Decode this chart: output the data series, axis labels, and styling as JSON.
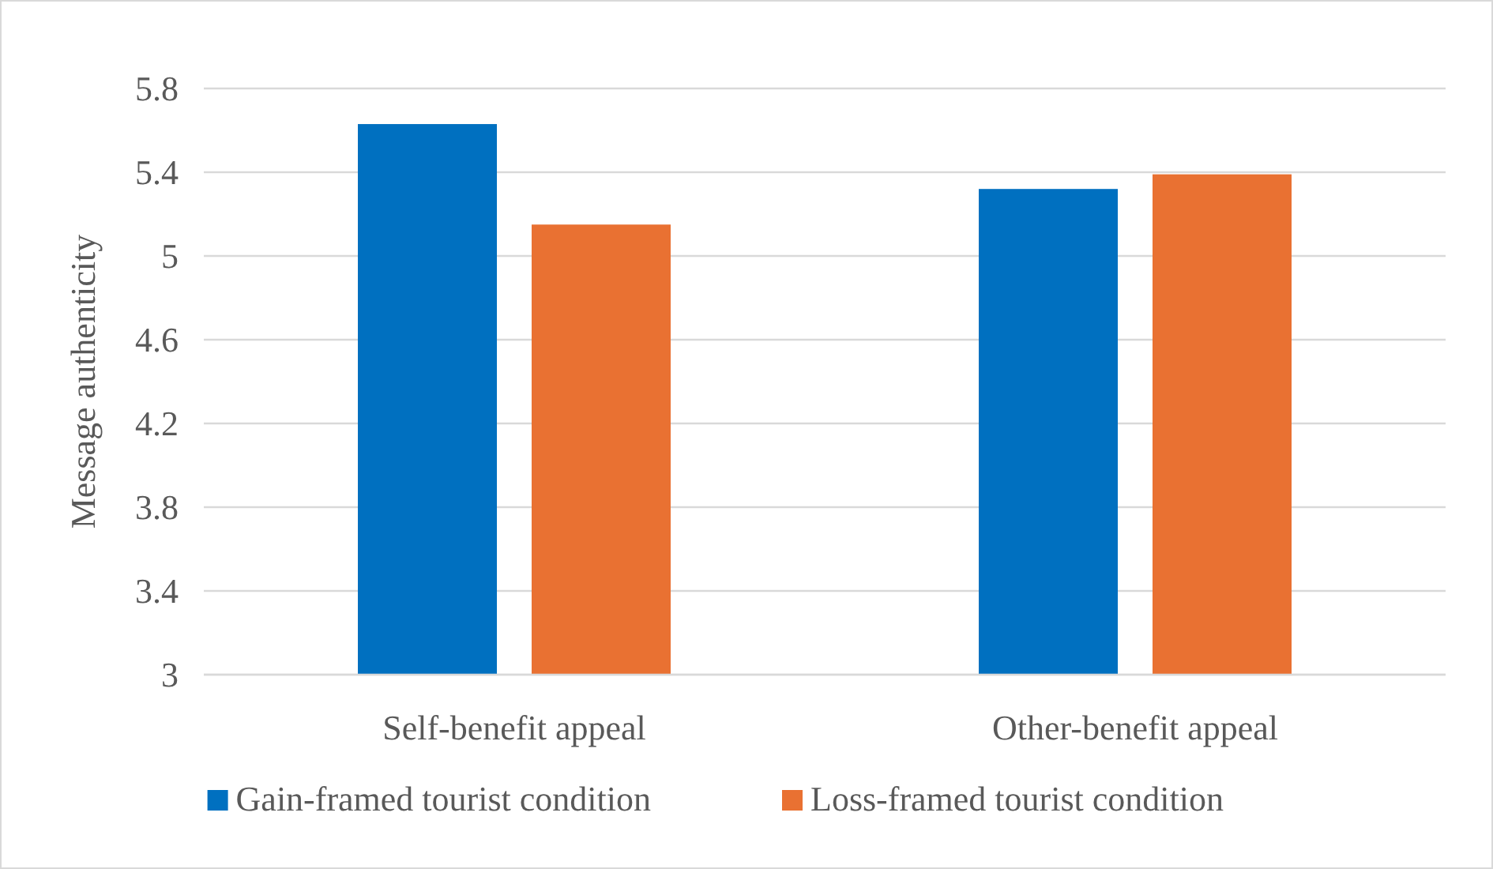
{
  "chart_data": {
    "type": "bar",
    "ylabel": "Message authenticity",
    "categories": [
      "Self-benefit appeal",
      "Other-benefit appeal"
    ],
    "series": [
      {
        "name": "Gain-framed tourist condition",
        "color": "#0070c0",
        "values": [
          5.63,
          5.32
        ]
      },
      {
        "name": "Loss-framed tourist condition",
        "color": "#e97132",
        "values": [
          5.15,
          5.39
        ]
      }
    ],
    "ylim": [
      3,
      5.8
    ],
    "yticks": [
      3,
      3.4,
      3.8,
      4.2,
      4.6,
      5,
      5.4,
      5.8
    ],
    "grid": "y",
    "legend": "bottom"
  }
}
